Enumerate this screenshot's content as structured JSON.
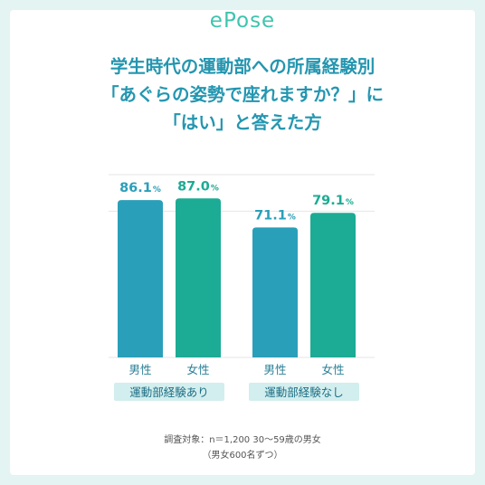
{
  "brand": {
    "name": "ePose"
  },
  "colors": {
    "male": "#2a9fba",
    "female": "#1cab94",
    "accent": "#2496b0",
    "background": "#e3f4f2",
    "group_tag": "#d2eeee"
  },
  "chart_data": {
    "type": "bar",
    "title_lines": [
      "学生時代の運動部への所属経験別",
      "「あぐらの姿勢で座れますか？」に",
      "「はい」と答えた方"
    ],
    "groups": [
      "運動部経験あり",
      "運動部経験なし"
    ],
    "categories": [
      "男性",
      "女性"
    ],
    "series": [
      {
        "group": "運動部経験あり",
        "values": [
          86.1,
          87.0
        ],
        "labels": [
          "86.1",
          "87.0"
        ]
      },
      {
        "group": "運動部経験なし",
        "values": [
          71.1,
          79.1
        ],
        "labels": [
          "71.1",
          "79.1"
        ]
      }
    ],
    "unit": "%",
    "ylim": [
      0,
      100
    ],
    "grid": true,
    "xlabel": "",
    "ylabel": ""
  },
  "footnote": {
    "line1": "調査対象：n＝1,200 30～59歳の男女",
    "line2": "（男女600名ずつ）"
  }
}
